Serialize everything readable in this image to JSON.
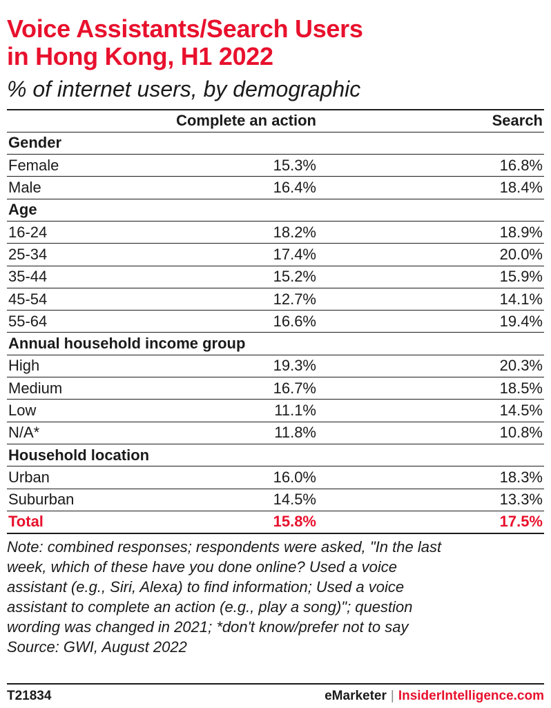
{
  "title_line1": "Voice Assistants/Search Users",
  "title_line2": "in Hong Kong, H1 2022",
  "subtitle": "% of internet users, by demographic",
  "columns": [
    "",
    "Complete an action",
    "Search"
  ],
  "chart_data": {
    "type": "table",
    "title": "Voice Assistants/Search Users in Hong Kong, H1 2022",
    "subtitle": "% of internet users, by demographic",
    "columns": [
      "Complete an action",
      "Search"
    ],
    "groups": [
      {
        "name": "Gender",
        "rows": [
          {
            "label": "Female",
            "values": [
              "15.3%",
              "16.8%"
            ]
          },
          {
            "label": "Male",
            "values": [
              "16.4%",
              "18.4%"
            ]
          }
        ]
      },
      {
        "name": "Age",
        "rows": [
          {
            "label": "16-24",
            "values": [
              "18.2%",
              "18.9%"
            ]
          },
          {
            "label": "25-34",
            "values": [
              "17.4%",
              "20.0%"
            ]
          },
          {
            "label": "35-44",
            "values": [
              "15.2%",
              "15.9%"
            ]
          },
          {
            "label": "45-54",
            "values": [
              "12.7%",
              "14.1%"
            ]
          },
          {
            "label": "55-64",
            "values": [
              "16.6%",
              "19.4%"
            ]
          }
        ]
      },
      {
        "name": "Annual household income group",
        "rows": [
          {
            "label": "High",
            "values": [
              "19.3%",
              "20.3%"
            ]
          },
          {
            "label": "Medium",
            "values": [
              "16.7%",
              "18.5%"
            ]
          },
          {
            "label": "Low",
            "values": [
              "11.1%",
              "14.5%"
            ]
          },
          {
            "label": "N/A*",
            "values": [
              "11.8%",
              "10.8%"
            ]
          }
        ]
      },
      {
        "name": "Household location",
        "rows": [
          {
            "label": "Urban",
            "values": [
              "16.0%",
              "18.3%"
            ]
          },
          {
            "label": "Suburban",
            "values": [
              "14.5%",
              "13.3%"
            ]
          }
        ]
      }
    ],
    "total": {
      "label": "Total",
      "values": [
        "15.8%",
        "17.5%"
      ]
    }
  },
  "note_lines": [
    "Note: combined responses; respondents were asked, \"In the last",
    "week, which of these have you done online? Used a voice",
    "assistant (e.g., Siri, Alexa) to find information; Used a voice",
    "assistant to complete an action (e.g., play a song)\"; question",
    "wording was changed in 2021; *don't know/prefer not to say",
    "Source: GWI, August 2022"
  ],
  "footer": {
    "code": "T21834",
    "brand_left": "eMarketer",
    "separator": "|",
    "brand_right": "InsiderIntelligence.com"
  },
  "colors": {
    "accent": "#e8112d",
    "text": "#1a1a1a"
  }
}
